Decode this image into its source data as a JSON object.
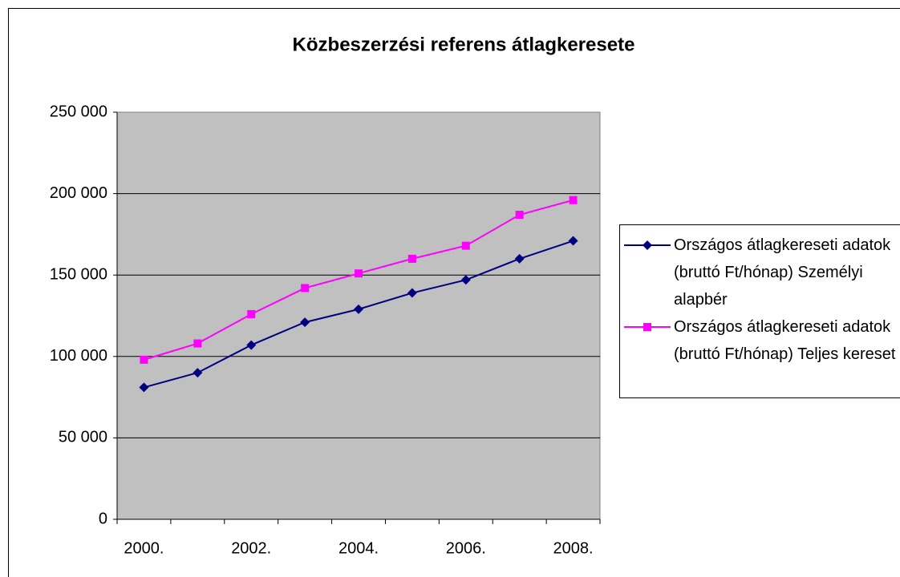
{
  "chart_data": {
    "type": "line",
    "title": "Közbeszerzési referens átlagkeresete",
    "categories": [
      "2000.",
      null,
      "2002.",
      null,
      "2004.",
      null,
      "2006.",
      null,
      "2008."
    ],
    "series": [
      {
        "name": "Országos átlagkereseti adatok (bruttó Ft/hónap) Személyi alapbér",
        "color": "#000080",
        "marker": "diamond",
        "values": [
          81000,
          90000,
          107000,
          121000,
          129000,
          139000,
          147000,
          160000,
          171000
        ]
      },
      {
        "name": "Országos átlagkereseti adatok (bruttó Ft/hónap) Teljes kereset",
        "color": "#ff00ff",
        "marker": "square",
        "values": [
          98000,
          108000,
          126000,
          142000,
          151000,
          160000,
          168000,
          187000,
          196000
        ]
      }
    ],
    "ylim": [
      0,
      250000
    ],
    "yticks": [
      0,
      {
        "value": 50000,
        "label": "50 000"
      },
      {
        "value": 100000,
        "label": "100 000"
      },
      {
        "value": 150000,
        "label": "150 000"
      },
      {
        "value": 200000,
        "label": "200 000"
      },
      {
        "value": 250000,
        "label": "250 000"
      }
    ],
    "grid": true,
    "legend": "right"
  }
}
